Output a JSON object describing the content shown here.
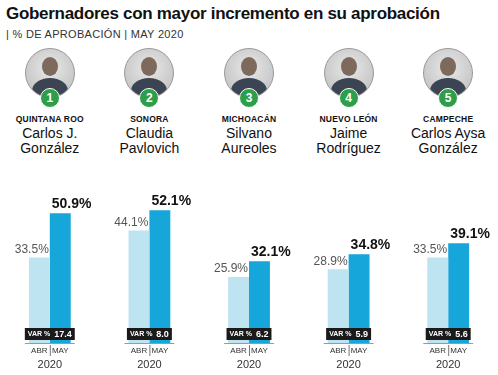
{
  "chart_data": {
    "type": "bar",
    "title": "Gobernadores con mayor incremento en su aprobación",
    "subtitle": "| % DE APROBACIÓN | MAY 2020",
    "ranks": [
      1,
      2,
      3,
      4,
      5
    ],
    "states": [
      "QUINTANA ROO",
      "SONORA",
      "MICHOACÁN",
      "NUEVO LEÓN",
      "CAMPECHE"
    ],
    "categories": [
      "Carlos J. González",
      "Claudia Pavlovich",
      "Silvano Aureoles",
      "Jaime Rodríguez",
      "Carlos Aysa González"
    ],
    "series": [
      {
        "name": "ABR",
        "color": "#bfe4f1",
        "values": [
          33.5,
          44.1,
          25.9,
          28.9,
          33.5
        ],
        "value_labels": [
          "33.5%",
          "44.1%",
          "25.9%",
          "28.9%",
          "33.5%"
        ]
      },
      {
        "name": "MAY",
        "color": "#17a6d9",
        "values": [
          50.9,
          52.1,
          32.1,
          34.8,
          39.1
        ],
        "value_labels": [
          "50.9%",
          "52.1%",
          "32.1%",
          "34.8%",
          "39.1%"
        ]
      }
    ],
    "variation": {
      "label": "VAR %",
      "values": [
        17.4,
        8.0,
        6.2,
        5.9,
        5.6
      ],
      "value_labels": [
        "17.4",
        "8.0",
        "6.2",
        "5.9",
        "5.6"
      ]
    },
    "year": "2020",
    "ylim": [
      0,
      60
    ],
    "yticks": [
      0,
      60
    ],
    "grid": false,
    "tick_labels": false,
    "data_labels": true
  }
}
